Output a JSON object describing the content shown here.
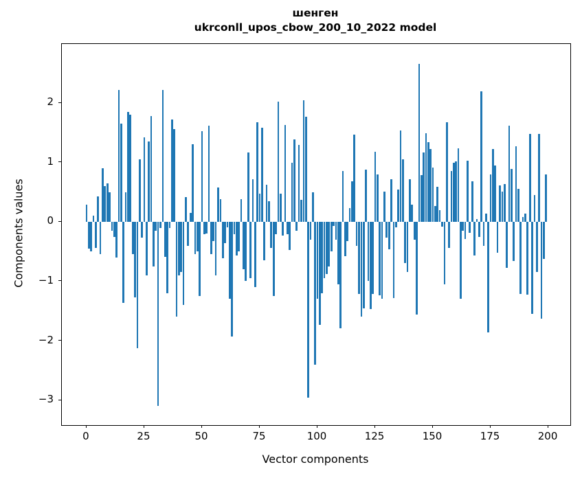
{
  "figure": {
    "title_line1": "шенген",
    "title_line2": "ukrconll_upos_cbow_200_10_2022 model",
    "xlabel": "Vector components",
    "ylabel": "Components values",
    "bar_color": "#1f77b4",
    "spine_color": "#000000",
    "background_color": "#ffffff"
  },
  "chart_data": {
    "type": "bar",
    "title": "шенген",
    "subtitle": "ukrconll_upos_cbow_200_10_2022 model",
    "xlabel": "Vector components",
    "ylabel": "Components values",
    "x_start": 0,
    "bar_unit_width": 0.8,
    "grid": false,
    "legend_position": "none",
    "xlim": [
      -10.7,
      209.5
    ],
    "ylim": [
      -3.42,
      2.99
    ],
    "xticks": [
      0,
      25,
      50,
      75,
      100,
      125,
      150,
      175,
      200
    ],
    "xtick_labels": [
      "0",
      "25",
      "50",
      "75",
      "100",
      "125",
      "150",
      "175",
      "200"
    ],
    "yticks": [
      2,
      1,
      0,
      -1,
      -2,
      -3
    ],
    "ytick_labels": [
      "2",
      "1",
      "0",
      "−1",
      "−2",
      "−3"
    ],
    "values": [
      0.29,
      -0.45,
      -0.5,
      0.1,
      -0.44,
      0.43,
      -0.55,
      0.9,
      0.6,
      0.65,
      0.5,
      -0.15,
      -0.26,
      -0.6,
      2.22,
      1.65,
      -1.37,
      0.5,
      1.85,
      1.8,
      -0.55,
      -1.27,
      -2.13,
      1.05,
      -0.27,
      1.42,
      -0.9,
      1.35,
      1.78,
      -0.75,
      -0.15,
      -3.1,
      -0.1,
      2.22,
      -0.59,
      -1.2,
      -0.1,
      1.72,
      1.56,
      -1.6,
      -0.9,
      -0.85,
      -1.4,
      0.42,
      -0.4,
      0.15,
      1.3,
      -0.55,
      -0.5,
      -1.25,
      1.52,
      -0.21,
      -0.2,
      1.62,
      -0.54,
      -0.32,
      -0.9,
      0.58,
      0.38,
      -0.61,
      -0.36,
      -0.09,
      -1.3,
      -1.93,
      -0.21,
      -0.57,
      -0.5,
      0.38,
      -0.8,
      -1.0,
      1.17,
      -0.95,
      0.72,
      -1.1,
      1.67,
      0.47,
      1.58,
      -0.65,
      0.62,
      0.35,
      -0.44,
      -1.25,
      -0.21,
      2.02,
      0.47,
      -0.23,
      1.63,
      -0.21,
      -0.47,
      0.99,
      1.39,
      -0.15,
      1.29,
      0.37,
      2.04,
      1.77,
      -2.96,
      -0.3,
      0.49,
      -2.4,
      -1.3,
      -1.73,
      -1.2,
      -0.95,
      -0.88,
      -0.75,
      -0.5,
      -0.07,
      -0.3,
      -1.05,
      -1.79,
      0.85,
      -0.58,
      -0.33,
      0.23,
      0.68,
      1.47,
      -0.4,
      -1.21,
      -1.6,
      -1.46,
      0.88,
      -1.0,
      -1.47,
      -1.21,
      1.18,
      0.79,
      -1.24,
      -1.29,
      0.51,
      -0.27,
      -0.46,
      0.72,
      -1.28,
      -0.09,
      0.54,
      1.54,
      1.05,
      -0.7,
      -0.85,
      0.71,
      0.29,
      -0.3,
      -1.56,
      2.65,
      0.78,
      1.17,
      1.49,
      1.34,
      1.22,
      0.91,
      0.26,
      0.59,
      0.19,
      -0.08,
      -1.05,
      1.67,
      -0.44,
      0.85,
      0.99,
      1.01,
      1.24,
      -1.29,
      -0.15,
      -0.29,
      1.03,
      -0.19,
      0.68,
      -0.57,
      0.05,
      -0.25,
      2.19,
      -0.4,
      0.14,
      -1.86,
      0.79,
      1.22,
      0.94,
      -0.52,
      0.61,
      0.51,
      0.63,
      -0.77,
      1.61,
      0.89,
      -0.66,
      1.27,
      0.55,
      -1.21,
      0.08,
      0.14,
      -1.22,
      1.48,
      -1.55,
      0.45,
      -0.85,
      1.48,
      -1.63,
      -0.63,
      0.8
    ]
  }
}
